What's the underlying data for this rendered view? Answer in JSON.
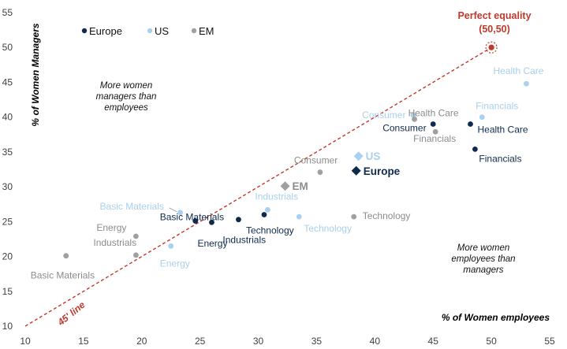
{
  "chart_data": {
    "type": "scatter",
    "xlabel": "% of Women employees",
    "ylabel": "% of Women Managers",
    "xlim": [
      10,
      55
    ],
    "ylim": [
      10,
      55
    ],
    "xticks": [
      10,
      15,
      20,
      25,
      30,
      35,
      40,
      45,
      50,
      55
    ],
    "yticks": [
      10,
      15,
      20,
      25,
      30,
      35,
      40,
      45,
      50,
      55
    ],
    "grid": false,
    "legend_position": "top-left",
    "colors": {
      "Europe": "#0f2b4c",
      "US": "#a9d0ec",
      "EM": "#a0a0a0",
      "accent": "#c0392b"
    },
    "series": [
      {
        "name": "Europe",
        "points": [
          {
            "x": 24.6,
            "y": 25.1,
            "label": "Basic Materials"
          },
          {
            "x": 26.0,
            "y": 24.9,
            "label": "Energy"
          },
          {
            "x": 28.3,
            "y": 25.3,
            "label": "Industrials"
          },
          {
            "x": 30.5,
            "y": 26.0,
            "label": "Technology"
          },
          {
            "x": 45.0,
            "y": 39.0,
            "label": "Consumer"
          },
          {
            "x": 48.2,
            "y": 39.0,
            "label": "Health Care"
          },
          {
            "x": 48.6,
            "y": 35.4,
            "label": "Financials"
          }
        ]
      },
      {
        "name": "US",
        "points": [
          {
            "x": 23.3,
            "y": 26.3,
            "label": "Basic Materials"
          },
          {
            "x": 22.5,
            "y": 21.5,
            "label": "Energy"
          },
          {
            "x": 30.8,
            "y": 26.7,
            "label": "Industrials"
          },
          {
            "x": 33.5,
            "y": 25.7,
            "label": "Technology"
          },
          {
            "x": 43.3,
            "y": 40.3,
            "label": "Consumer"
          },
          {
            "x": 49.2,
            "y": 40.0,
            "label": "Financials"
          },
          {
            "x": 53.0,
            "y": 44.8,
            "label": "Health Care"
          }
        ]
      },
      {
        "name": "EM",
        "points": [
          {
            "x": 13.5,
            "y": 20.1,
            "label": "Basic Materials"
          },
          {
            "x": 19.5,
            "y": 22.9,
            "label": "Energy"
          },
          {
            "x": 19.5,
            "y": 20.2,
            "label": "Industrials"
          },
          {
            "x": 35.3,
            "y": 32.1,
            "label": "Consumer"
          },
          {
            "x": 38.2,
            "y": 25.7,
            "label": "Technology"
          },
          {
            "x": 43.4,
            "y": 39.7,
            "label": "Health Care"
          },
          {
            "x": 45.2,
            "y": 37.9,
            "label": "Financials"
          }
        ]
      }
    ],
    "aggregates": [
      {
        "name": "US",
        "x": 38.6,
        "y": 34.4
      },
      {
        "name": "Europe",
        "x": 38.4,
        "y": 32.3
      },
      {
        "name": "EM",
        "x": 32.3,
        "y": 30.1
      }
    ],
    "annotations": {
      "equality_title": "Perfect equality",
      "equality_coords": "(50,50)",
      "equality_point": {
        "x": 50,
        "y": 50
      },
      "line_label": "45' line",
      "note_upper": [
        "More women",
        "managers than",
        "employees"
      ],
      "note_lower": [
        "More women",
        "employees than",
        "managers"
      ]
    }
  }
}
